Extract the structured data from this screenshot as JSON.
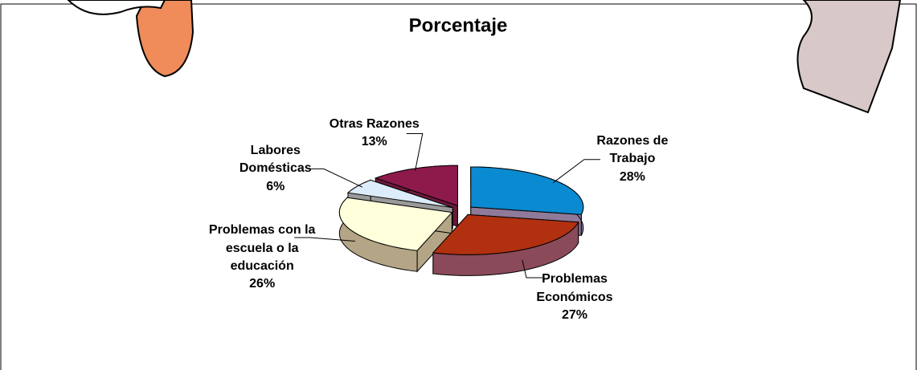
{
  "chart_data": {
    "type": "pie3d",
    "title": "Porcentaje",
    "categories": [
      "Razones de Trabajo",
      "Problemas Económicos",
      "Problemas con la escuela o la educación",
      "Labores Domésticas",
      "Otras Razones"
    ],
    "values": [
      28,
      27,
      26,
      6,
      13
    ],
    "value_labels": [
      "28%",
      "27%",
      "26%",
      "6%",
      "13%"
    ],
    "colors": [
      "#0a8ad0",
      "#b0300f",
      "#ffffdc",
      "#dcecfa",
      "#8e1a4c"
    ],
    "side_colors": [
      "#8f7a9a",
      "#8a4a5a",
      "#b3a586",
      "#9a9a9a",
      "#6a1a3a"
    ]
  }
}
